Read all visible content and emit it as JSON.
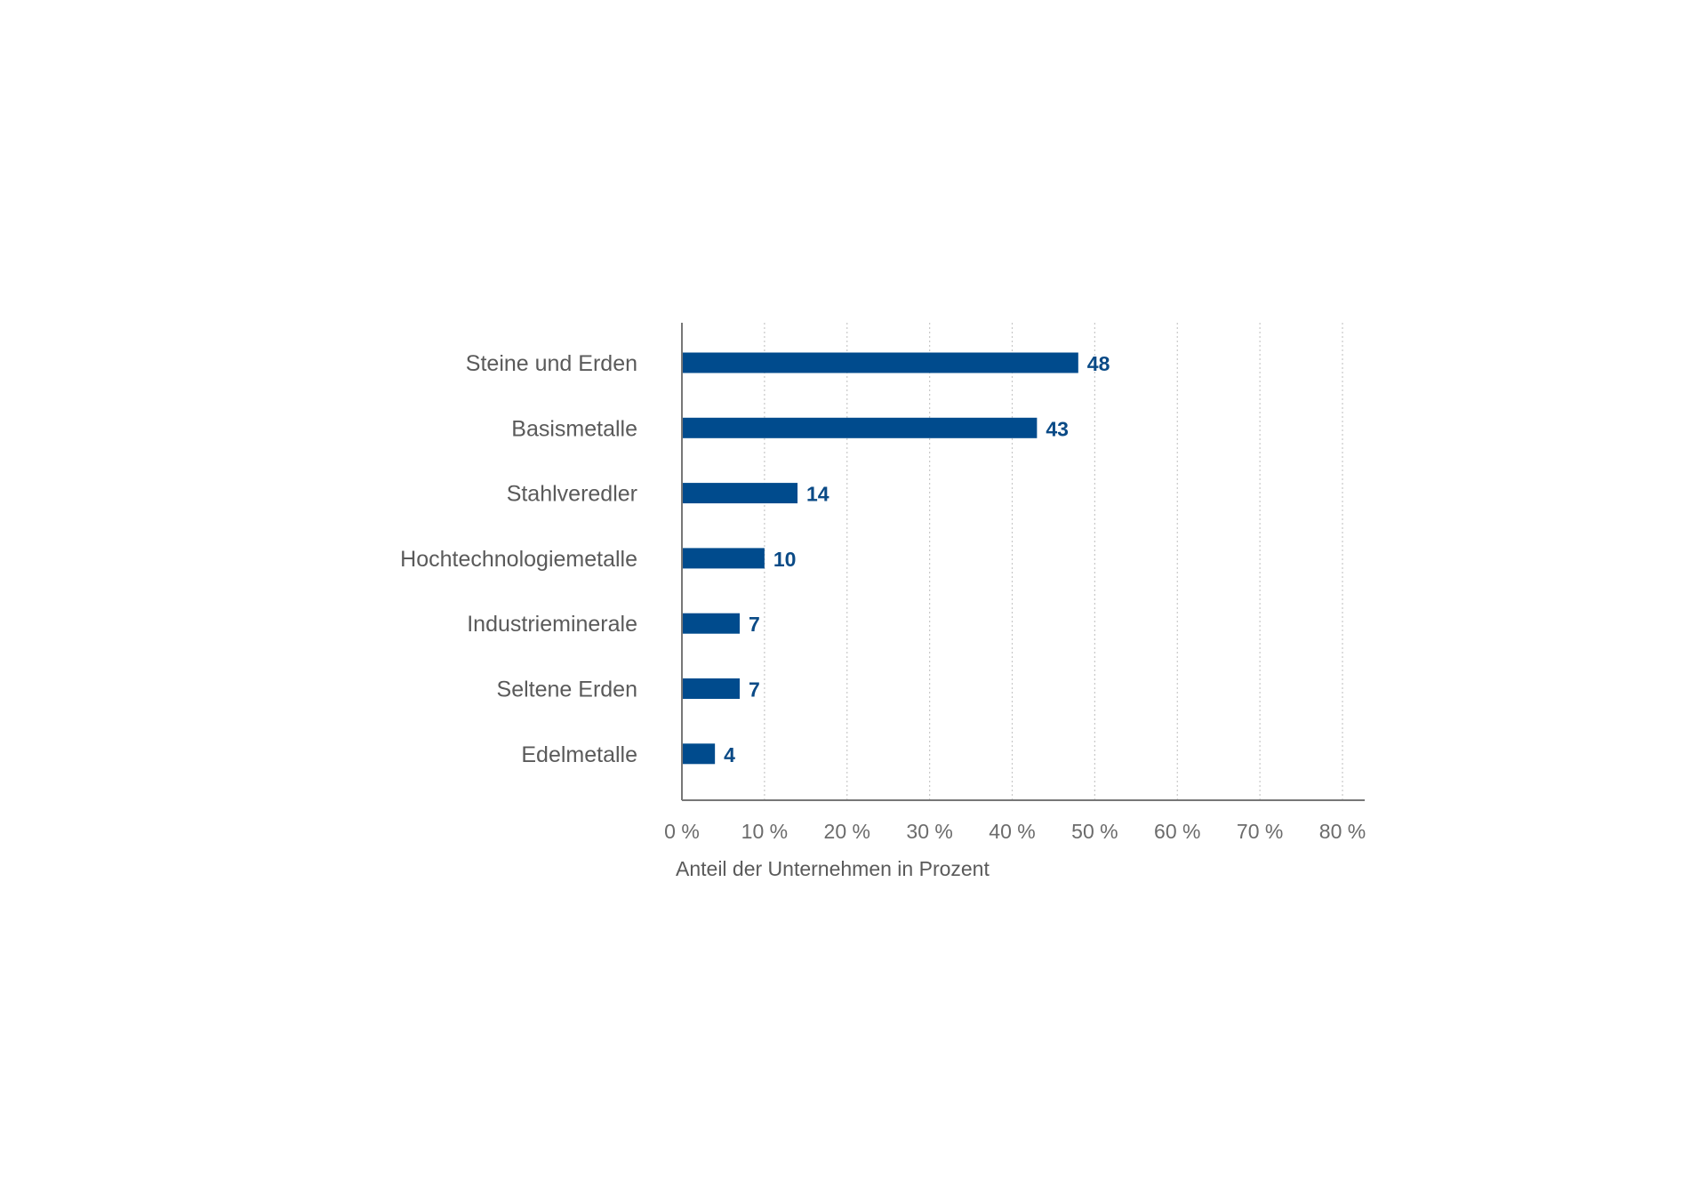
{
  "chart_data": {
    "type": "bar",
    "orientation": "horizontal",
    "categories": [
      "Steine und Erden",
      "Basismetalle",
      "Stahlveredler",
      "Hochtechnologiemetalle",
      "Industrieminerale",
      "Seltene Erden",
      "Edelmetalle"
    ],
    "values": [
      48,
      43,
      14,
      10,
      7,
      7,
      4
    ],
    "data_labels": [
      "48",
      "43",
      "14",
      "10",
      "7",
      "7",
      "4"
    ],
    "xlim": [
      0,
      80
    ],
    "xticks": [
      0,
      10,
      20,
      30,
      40,
      50,
      60,
      70,
      80
    ],
    "xtick_labels": [
      "0 %",
      "10 %",
      "20 %",
      "30 %",
      "40 %",
      "50 %",
      "60 %",
      "70 %",
      "80 %"
    ],
    "xlabel": "Anteil der Unternehmen in Prozent",
    "ylabel": "",
    "grid": "vertical dotted",
    "legend": "none",
    "colors": {
      "bar": "#004b8d",
      "data_label": "#0a4a86",
      "axis": "#777777",
      "grid": "#c8c8c8"
    }
  }
}
